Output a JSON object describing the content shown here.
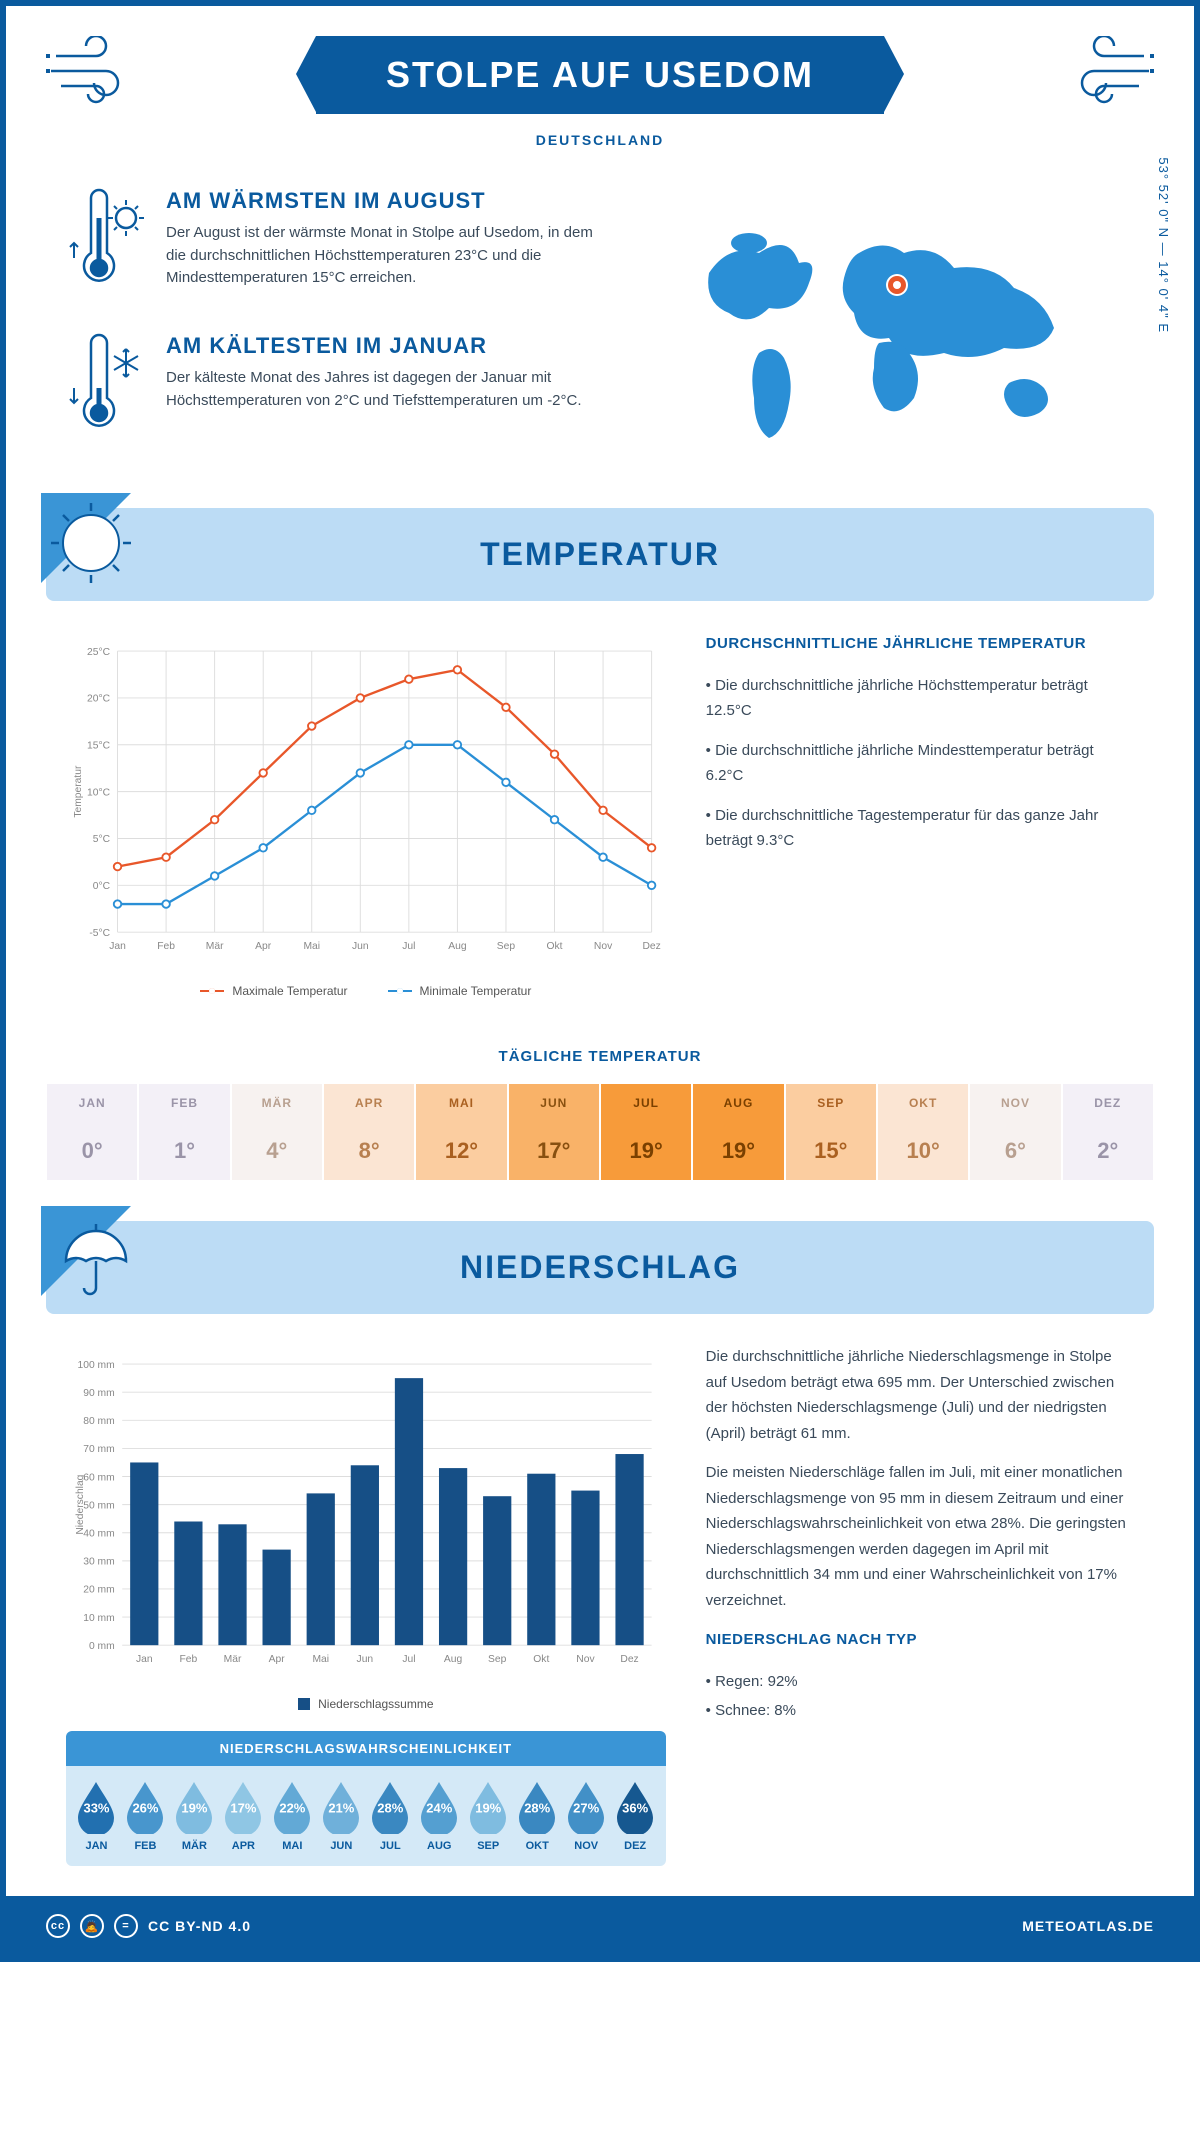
{
  "header": {
    "title": "STOLPE AUF USEDOM",
    "subtitle": "DEUTSCHLAND",
    "coordinates": "53° 52' 0\" N — 14° 0' 4\" E"
  },
  "facts": {
    "warmest": {
      "title": "AM WÄRMSTEN IM AUGUST",
      "text": "Der August ist der wärmste Monat in Stolpe auf Usedom, in dem die durchschnittlichen Höchsttemperaturen 23°C und die Mindesttemperaturen 15°C erreichen."
    },
    "coldest": {
      "title": "AM KÄLTESTEN IM JANUAR",
      "text": "Der kälteste Monat des Jahres ist dagegen der Januar mit Höchsttemperaturen von 2°C und Tiefsttemperaturen um -2°C."
    }
  },
  "sections": {
    "temperature": "TEMPERATUR",
    "precipitation": "NIEDERSCHLAG"
  },
  "temp_chart": {
    "type": "line",
    "months": [
      "Jan",
      "Feb",
      "Mär",
      "Apr",
      "Mai",
      "Jun",
      "Jul",
      "Aug",
      "Sep",
      "Okt",
      "Nov",
      "Dez"
    ],
    "max_series": [
      2,
      3,
      7,
      12,
      17,
      20,
      22,
      23,
      19,
      14,
      8,
      4
    ],
    "min_series": [
      -2,
      -2,
      1,
      4,
      8,
      12,
      15,
      15,
      11,
      7,
      3,
      0
    ],
    "max_color": "#e8572a",
    "min_color": "#2a8fd6",
    "ylim": [
      -5,
      25
    ],
    "ytick_step": 5,
    "ylabel": "Temperatur",
    "grid_color": "#dddddd",
    "legend_max": "Maximale Temperatur",
    "legend_min": "Minimale Temperatur"
  },
  "temp_text": {
    "heading": "DURCHSCHNITTLICHE JÄHRLICHE TEMPERATUR",
    "p1": "• Die durchschnittliche jährliche Höchsttemperatur beträgt 12.5°C",
    "p2": "• Die durchschnittliche jährliche Mindesttemperatur beträgt 6.2°C",
    "p3": "• Die durchschnittliche Tagestemperatur für das ganze Jahr beträgt 9.3°C"
  },
  "daily": {
    "title": "TÄGLICHE TEMPERATUR",
    "months": [
      "JAN",
      "FEB",
      "MÄR",
      "APR",
      "MAI",
      "JUN",
      "JUL",
      "AUG",
      "SEP",
      "OKT",
      "NOV",
      "DEZ"
    ],
    "values": [
      "0°",
      "1°",
      "4°",
      "8°",
      "12°",
      "17°",
      "19°",
      "19°",
      "15°",
      "10°",
      "6°",
      "2°"
    ],
    "colors": [
      "#f3f0f7",
      "#f3f0f7",
      "#f7f2f0",
      "#fbe5d3",
      "#fbcda0",
      "#f9b268",
      "#f79b3a",
      "#f79b3a",
      "#fbcda0",
      "#fbe5d3",
      "#f7f2f0",
      "#f3f0f7"
    ],
    "text_colors": [
      "#9a94a8",
      "#9a94a8",
      "#b8a090",
      "#b88050",
      "#aa6020",
      "#885010",
      "#7a4000",
      "#7a4000",
      "#aa6020",
      "#b88050",
      "#b8a090",
      "#9a94a8"
    ]
  },
  "precip_chart": {
    "type": "bar",
    "months": [
      "Jan",
      "Feb",
      "Mär",
      "Apr",
      "Mai",
      "Jun",
      "Jul",
      "Aug",
      "Sep",
      "Okt",
      "Nov",
      "Dez"
    ],
    "values": [
      65,
      44,
      43,
      34,
      54,
      64,
      95,
      63,
      53,
      61,
      55,
      68
    ],
    "bar_color": "#164f86",
    "ylim": [
      0,
      100
    ],
    "ytick_step": 10,
    "ylabel": "Niederschlag",
    "grid_color": "#dddddd",
    "legend": "Niederschlagssumme",
    "unit": "mm"
  },
  "precip_text": {
    "p1": "Die durchschnittliche jährliche Niederschlagsmenge in Stolpe auf Usedom beträgt etwa 695 mm. Der Unterschied zwischen der höchsten Niederschlagsmenge (Juli) und der niedrigsten (April) beträgt 61 mm.",
    "p2": "Die meisten Niederschläge fallen im Juli, mit einer monatlichen Niederschlagsmenge von 95 mm in diesem Zeitraum und einer Niederschlagswahrscheinlichkeit von etwa 28%. Die geringsten Niederschlagsmengen werden dagegen im April mit durchschnittlich 34 mm und einer Wahrscheinlichkeit von 17% verzeichnet.",
    "type_heading": "NIEDERSCHLAG NACH TYP",
    "type_rain": "• Regen: 92%",
    "type_snow": "• Schnee: 8%"
  },
  "prob": {
    "title": "NIEDERSCHLAGSWAHRSCHEINLICHKEIT",
    "months": [
      "JAN",
      "FEB",
      "MÄR",
      "APR",
      "MAI",
      "JUN",
      "JUL",
      "AUG",
      "SEP",
      "OKT",
      "NOV",
      "DEZ"
    ],
    "values": [
      "33%",
      "26%",
      "19%",
      "17%",
      "22%",
      "21%",
      "28%",
      "24%",
      "19%",
      "28%",
      "27%",
      "36%"
    ],
    "colors": [
      "#2270b0",
      "#4896cd",
      "#7fbce0",
      "#8fc6e4",
      "#62a9d6",
      "#6fb0da",
      "#3a88c1",
      "#549fd1",
      "#7fbce0",
      "#3a88c1",
      "#4290c7",
      "#165890"
    ]
  },
  "footer": {
    "license": "CC BY-ND 4.0",
    "site": "METEOATLAS.DE"
  },
  "colors": {
    "primary": "#0a5a9e",
    "light_blue": "#bcdcf5",
    "marker": "#e8572a"
  }
}
